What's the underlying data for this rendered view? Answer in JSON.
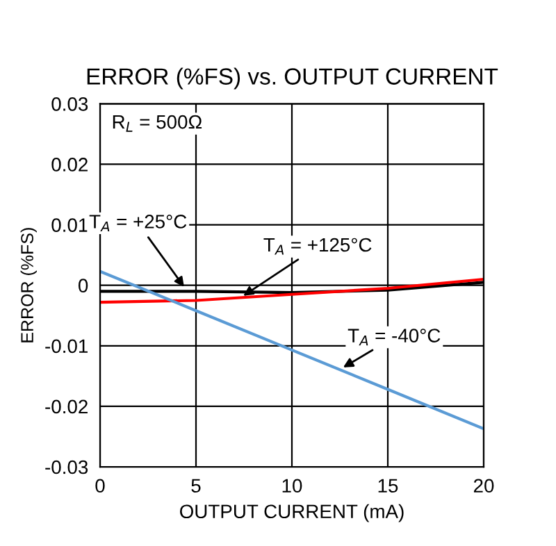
{
  "chart_data": {
    "type": "line",
    "title": "ERROR (%FS) vs. OUTPUT CURRENT",
    "xlabel": "OUTPUT CURRENT (mA)",
    "ylabel": "ERROR (%FS)",
    "x": [
      0,
      5,
      10,
      15,
      20
    ],
    "series": [
      {
        "color": "#000000",
        "values": [
          -0.001,
          -0.001,
          -0.0012,
          -0.0008,
          0.0005
        ]
      },
      {
        "color": "#ff0000",
        "values": [
          -0.0028,
          -0.0025,
          -0.0015,
          -0.0005,
          0.001
        ]
      },
      {
        "color": "#5b9bd5",
        "values": [
          0.0023,
          -0.0042,
          -0.0107,
          -0.0172,
          -0.0237
        ]
      }
    ],
    "xlim": [
      0,
      20
    ],
    "xticks": [
      0,
      5,
      10,
      15,
      20
    ],
    "ylim": [
      -0.03,
      0.03
    ],
    "yticks": [
      {
        "value": -0.03,
        "label": "-0.03"
      },
      {
        "value": -0.02,
        "label": "-0.02"
      },
      {
        "value": -0.01,
        "label": "-0.01"
      },
      0,
      0.01,
      0.02,
      0.03
    ],
    "grid": true,
    "line_style": "solid",
    "annotations": [
      "R$_{L}$ = 500Ω",
      {
        "text": "T$_{A}$ = +25°C",
        "x": 4.5,
        "y": -0.0008
      },
      {
        "text": "T$_{A}$ = +125°C",
        "x": 7.3,
        "y": -0.0021
      },
      {
        "text": "T$_{A}$ = -40°C",
        "x": 12.5,
        "y": -0.0139
      }
    ]
  }
}
